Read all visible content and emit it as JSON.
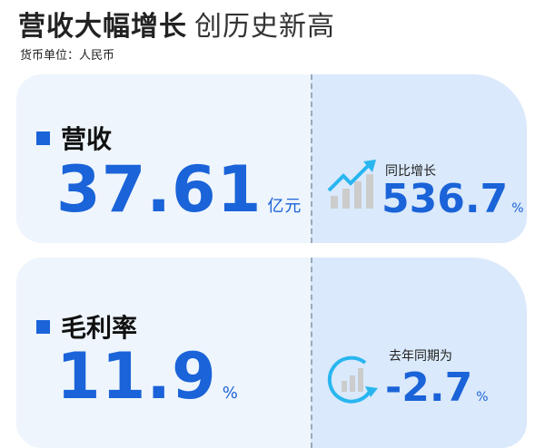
{
  "header": {
    "title": "营收大幅增长",
    "subtitle": "创历史新高",
    "unit_note": "货币单位：人民币"
  },
  "cards": [
    {
      "label": "营收",
      "value": "37.61",
      "unit": "亿元",
      "compare_label": "同比增长",
      "compare_value": "536.7",
      "compare_unit": "%",
      "icon": "trend-up-bar-chart-icon"
    },
    {
      "label": "毛利率",
      "value": "11.9",
      "unit": "%",
      "compare_label": "去年同期为",
      "compare_value": "-2.7",
      "compare_unit": "%",
      "icon": "cycle-bar-chart-icon"
    }
  ],
  "colors": {
    "accent": "#1a63d8",
    "icon_cyan": "#29b6f0",
    "card_bg": "#eef5fd",
    "card_right_bg": "#dae9fb"
  }
}
